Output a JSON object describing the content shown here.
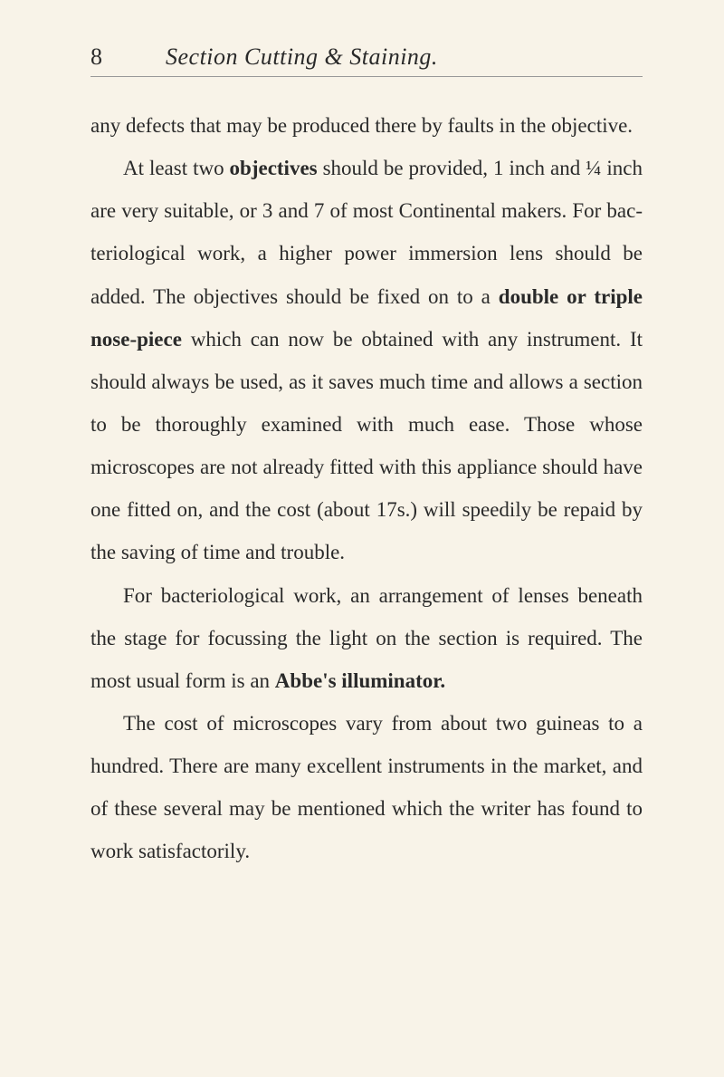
{
  "page_number": "8",
  "header_title": "Section Cutting & Staining.",
  "paragraphs": {
    "p1": "any defects that may be produced there by faults in the objective.",
    "p2_part1": "At least two ",
    "p2_bold1": "objectives",
    "p2_part2": " should be provided, 1 inch and ¼ inch are very suitable, or 3 and 7 of most Continental makers. For bac-teriological work, a higher power immersion lens should be added. The objectives should be fixed on to a ",
    "p2_bold2": "double or triple nose-piece",
    "p2_part3": " which can now be obtained with any instrument. It should always be used, as it saves much time and allows a section to be thoroughly examined with much ease. Those whose microscopes are not already fitted with this appliance should have one fitted on, and the cost (about 17s.) will speedily be repaid by the saving of time and trouble.",
    "p3": "For bacteriological work, an arrangement of lenses beneath the stage for focussing the light on the section is required. The most usual form is an ",
    "p3_bold": "Abbe's illuminator.",
    "p4": "The cost of microscopes vary from about two guineas to a hundred. There are many excellent instruments in the market, and of these several may be mentioned which the writer has found to work satisfactorily."
  }
}
